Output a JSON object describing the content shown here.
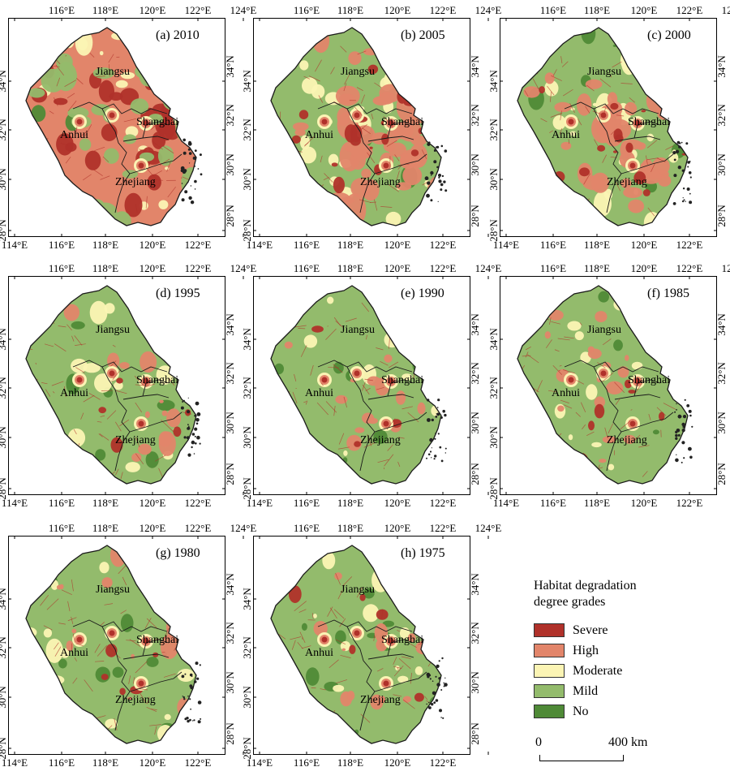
{
  "colors": {
    "Severe": "#b0312a",
    "High": "#e2856a",
    "Moderate": "#fbf4b4",
    "Mild": "#93bb6c",
    "No": "#4f8a37",
    "boundary": "#1a1a1a"
  },
  "axes": {
    "lon_ticks": [
      "114°E",
      "116°E",
      "118°E",
      "120°E",
      "122°E",
      "124°E"
    ],
    "lat_ticks": [
      "28°N",
      "30°N",
      "32°N",
      "34°N"
    ]
  },
  "provinces": [
    "Jiangsu",
    "Anhui",
    "Shanghai",
    "Zhejiang"
  ],
  "panels": [
    {
      "label": "(a) 2010",
      "year": 2010,
      "mix": {
        "Severe": 0.22,
        "High": 0.33,
        "Moderate": 0.15,
        "Mild": 0.27,
        "No": 0.03
      }
    },
    {
      "label": "(b) 2005",
      "year": 2005,
      "mix": {
        "Severe": 0.15,
        "High": 0.3,
        "Moderate": 0.18,
        "Mild": 0.34,
        "No": 0.03
      }
    },
    {
      "label": "(c) 2000",
      "year": 2000,
      "mix": {
        "Severe": 0.13,
        "High": 0.27,
        "Moderate": 0.18,
        "Mild": 0.38,
        "No": 0.04
      }
    },
    {
      "label": "(d) 1995",
      "year": 1995,
      "mix": {
        "Severe": 0.04,
        "High": 0.1,
        "Moderate": 0.1,
        "Mild": 0.71,
        "No": 0.05
      }
    },
    {
      "label": "(e) 1990",
      "year": 1990,
      "mix": {
        "Severe": 0.04,
        "High": 0.1,
        "Moderate": 0.09,
        "Mild": 0.72,
        "No": 0.05
      }
    },
    {
      "label": "(f) 1985",
      "year": 1985,
      "mix": {
        "Severe": 0.04,
        "High": 0.12,
        "Moderate": 0.12,
        "Mild": 0.67,
        "No": 0.05
      }
    },
    {
      "label": "(g) 1980",
      "year": 1980,
      "mix": {
        "Severe": 0.04,
        "High": 0.1,
        "Moderate": 0.09,
        "Mild": 0.69,
        "No": 0.08
      }
    },
    {
      "label": "(h) 1975",
      "year": 1975,
      "mix": {
        "Severe": 0.04,
        "High": 0.1,
        "Moderate": 0.09,
        "Mild": 0.69,
        "No": 0.08
      }
    }
  ],
  "legend": {
    "title_line1": "Habitat degradation",
    "title_line2": "degree grades",
    "items": [
      {
        "label": "Severe",
        "color": "#b0312a"
      },
      {
        "label": "High",
        "color": "#e2856a"
      },
      {
        "label": "Moderate",
        "color": "#fbf4b4"
      },
      {
        "label": "Mild",
        "color": "#93bb6c"
      },
      {
        "label": "No",
        "color": "#4f8a37"
      }
    ]
  },
  "scalebar": {
    "start": "0",
    "end": "400 km"
  }
}
